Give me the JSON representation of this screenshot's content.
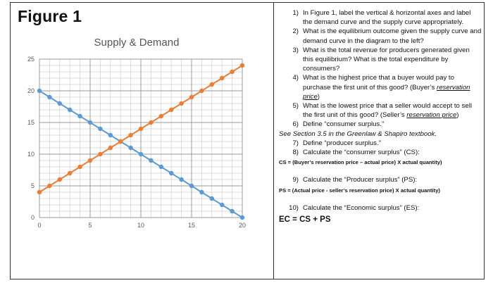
{
  "figure": {
    "title": "Figure 1"
  },
  "chart_data": {
    "type": "line",
    "title": "Supply & Demand",
    "xlabel": "",
    "ylabel": "",
    "xlim": [
      0,
      20
    ],
    "ylim": [
      0,
      25
    ],
    "x_ticks": [
      "0",
      "5",
      "10",
      "15",
      "20"
    ],
    "y_ticks": [
      "0",
      "5",
      "10",
      "15",
      "20",
      "25"
    ],
    "grid": true,
    "legend": "none",
    "series": [
      {
        "color": "#5b9bd5",
        "x": [
          0,
          1,
          2,
          3,
          4,
          5,
          6,
          7,
          8,
          9,
          10,
          11,
          12,
          13,
          14,
          15,
          16,
          17,
          18,
          19,
          20
        ],
        "y": [
          20,
          19,
          18,
          17,
          16,
          15,
          14,
          13,
          12,
          11,
          10,
          9,
          8,
          7,
          6,
          5,
          4,
          3,
          2,
          1,
          0
        ]
      },
      {
        "color": "#ed7d31",
        "x": [
          0,
          1,
          2,
          3,
          4,
          5,
          6,
          7,
          8,
          9,
          10,
          11,
          12,
          13,
          14,
          15,
          16,
          17,
          18,
          19,
          20
        ],
        "y": [
          4,
          5,
          6,
          7,
          8,
          9,
          10,
          11,
          12,
          13,
          14,
          15,
          16,
          17,
          18,
          19,
          20,
          21,
          22,
          23,
          24
        ]
      }
    ]
  },
  "questions": [
    {
      "num": "1)",
      "text": "In Figure 1, label the vertical & horizontal axes and label the demand curve and the supply curve appropriately."
    },
    {
      "num": "2)",
      "text": "What is the equilibrium outcome given the supply curve and demand curve in the diagram to the left?"
    },
    {
      "num": "3)",
      "text": "What is the total revenue for producers generated given this equilibrium? What is the total expenditure by consumers?"
    },
    {
      "num": "4)",
      "text": "What is the highest price that a buyer would pay to purchase the first unit of this good? (Buyer’s ",
      "ul": "reservation price",
      "tail": ")"
    },
    {
      "num": "5)",
      "text": "What is the lowest price that a seller would accept to sell the first unit of this good? (Seller’s ",
      "ul": "reservation price",
      "tail": ")"
    },
    {
      "num": "6)",
      "text": "Define “consumer surplus.”"
    }
  ],
  "note": "See Section 3.5 in the Greenlaw & Shapiro textbook.",
  "questions2": [
    {
      "num": "7)",
      "text": "Define “producer surplus.”"
    },
    {
      "num": "8)",
      "text": "Calculate the “consumer surplus” (CS):"
    }
  ],
  "cs_formula": "CS = (Buyer’s reservation price – actual price) X actual quantity)",
  "q9": {
    "num": "9)",
    "text": "Calculate the “Producer surplus” (PS):"
  },
  "ps_formula": "PS = (Actual price - seller’s reservation price) X actual quantity)",
  "q10": {
    "num": "10)",
    "text": "Calculate the “Economic surplus” (ES):"
  },
  "ec": "EC = CS + PS"
}
